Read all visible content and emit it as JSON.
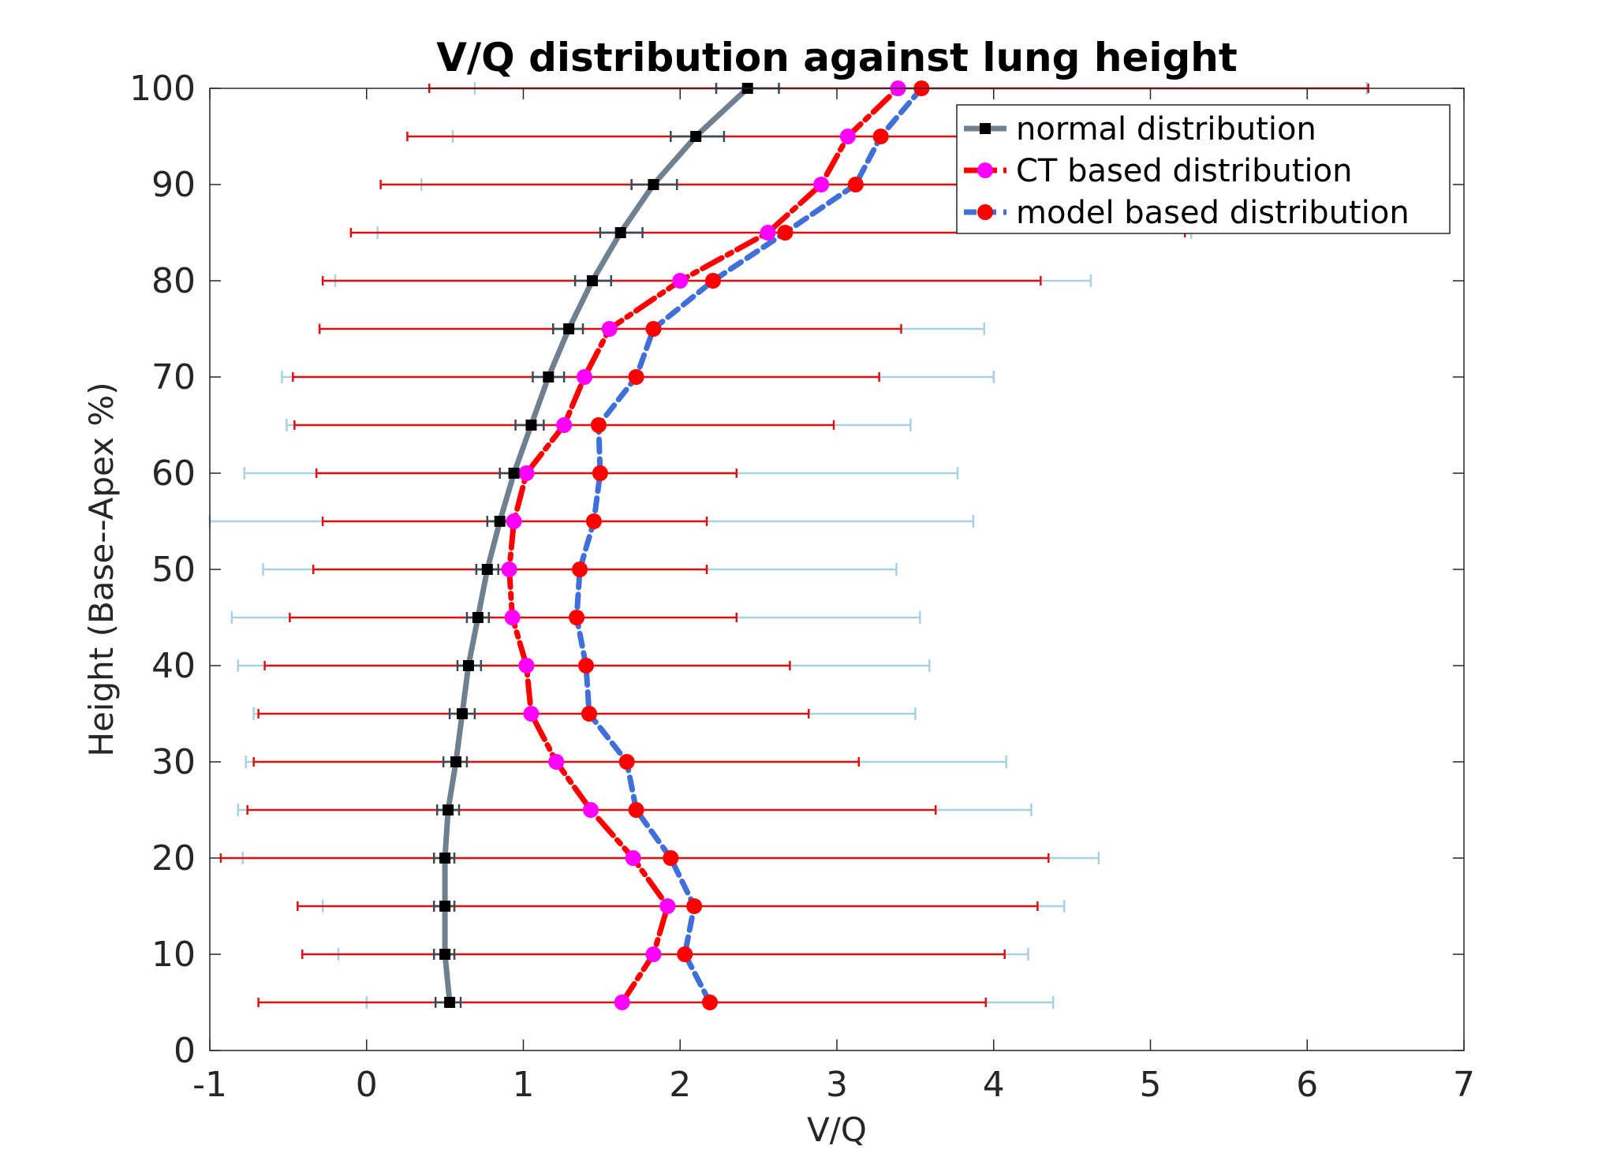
{
  "chart_data": {
    "type": "line",
    "title": "V/Q distribution against lung height",
    "xlabel": "V/Q",
    "ylabel": "Height (Base--Apex %)",
    "xlim": [
      -1,
      7
    ],
    "ylim": [
      0,
      100
    ],
    "xticks": [
      "-1",
      "0",
      "1",
      "2",
      "3",
      "4",
      "5",
      "6",
      "7"
    ],
    "yticks": [
      "0",
      "10",
      "20",
      "30",
      "40",
      "50",
      "60",
      "70",
      "80",
      "90",
      "100"
    ],
    "grid": false,
    "legend_position": "top-right",
    "y": [
      5,
      10,
      15,
      20,
      25,
      30,
      35,
      40,
      45,
      50,
      55,
      60,
      65,
      70,
      75,
      80,
      85,
      90,
      95,
      100
    ],
    "series": [
      {
        "name": "normal distribution",
        "color": "#6f8090",
        "marker_color": "#000000",
        "line_style": "solid",
        "x": [
          0.53,
          0.5,
          0.5,
          0.5,
          0.52,
          0.57,
          0.61,
          0.65,
          0.71,
          0.77,
          0.85,
          0.94,
          1.05,
          1.16,
          1.29,
          1.44,
          1.62,
          1.83,
          2.1,
          2.43
        ],
        "err_low": [
          0.44,
          0.43,
          0.43,
          0.43,
          0.45,
          0.49,
          0.53,
          0.58,
          0.64,
          0.7,
          0.77,
          0.85,
          0.95,
          1.06,
          1.19,
          1.33,
          1.49,
          1.69,
          1.94,
          2.23
        ],
        "err_high": [
          0.6,
          0.56,
          0.56,
          0.56,
          0.59,
          0.64,
          0.69,
          0.73,
          0.78,
          0.84,
          0.92,
          1.02,
          1.13,
          1.26,
          1.38,
          1.56,
          1.76,
          1.98,
          2.28,
          2.63
        ]
      },
      {
        "name": "CT based distribution",
        "color": "#ff0000",
        "marker_color": "#ff00ff",
        "line_style": "dash-dot",
        "x": [
          1.63,
          1.83,
          1.92,
          1.7,
          1.43,
          1.21,
          1.05,
          1.02,
          0.93,
          0.91,
          0.94,
          1.02,
          1.26,
          1.39,
          1.55,
          2.0,
          2.56,
          2.9,
          3.07,
          3.39
        ],
        "err_low": [
          -0.69,
          -0.41,
          -0.44,
          -0.93,
          -0.76,
          -0.72,
          -0.69,
          -0.65,
          -0.49,
          -0.34,
          -0.28,
          -0.32,
          -0.46,
          -0.47,
          -0.3,
          -0.28,
          -0.1,
          0.09,
          0.26,
          0.4
        ],
        "err_high": [
          3.95,
          4.07,
          4.28,
          4.35,
          3.63,
          3.14,
          2.82,
          2.7,
          2.36,
          2.17,
          2.17,
          2.36,
          2.98,
          3.27,
          3.41,
          4.3,
          5.22,
          5.9,
          6.1,
          6.39
        ]
      },
      {
        "name": "model based distribution",
        "color": "#3f6fd8",
        "marker_color": "#ff0000",
        "line_style": "dashed",
        "x": [
          2.19,
          2.03,
          2.09,
          1.94,
          1.72,
          1.66,
          1.42,
          1.4,
          1.34,
          1.36,
          1.45,
          1.49,
          1.48,
          1.72,
          1.83,
          2.21,
          2.67,
          3.12,
          3.28,
          3.54
        ],
        "err_low": [
          0.0,
          -0.18,
          -0.28,
          -0.79,
          -0.82,
          -0.77,
          -0.72,
          -0.82,
          -0.86,
          -0.66,
          -1.0,
          -0.78,
          -0.51,
          -0.54,
          -0.3,
          -0.2,
          0.07,
          0.35,
          0.55,
          0.69
        ],
        "err_high": [
          4.38,
          4.22,
          4.45,
          4.67,
          4.24,
          4.08,
          3.5,
          3.59,
          3.53,
          3.38,
          3.87,
          3.77,
          3.47,
          4.0,
          3.94,
          4.62,
          5.26,
          5.6,
          6.02,
          6.38
        ]
      }
    ]
  }
}
